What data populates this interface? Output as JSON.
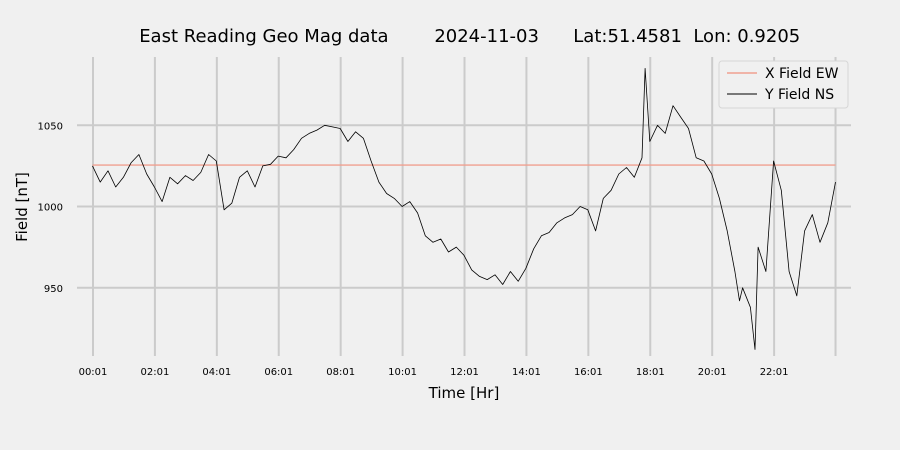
{
  "chart_data": {
    "type": "line",
    "title": {
      "label": "East Reading Geo Mag data",
      "date": "2024-11-03",
      "location": "Lat:51.4581  Lon: 0.9205"
    },
    "xlabel": "Time  [Hr]",
    "ylabel": "Field  [nT]",
    "x_unit": "hours",
    "xlim": [
      -0.5,
      24.5
    ],
    "ylim": [
      908,
      1092
    ],
    "x_ticks": [
      {
        "x": 0.0167,
        "label": "00:01"
      },
      {
        "x": 2.0167,
        "label": "02:01"
      },
      {
        "x": 4.0167,
        "label": "04:01"
      },
      {
        "x": 6.0167,
        "label": "06:01"
      },
      {
        "x": 8.0167,
        "label": "08:01"
      },
      {
        "x": 10.0167,
        "label": "10:01"
      },
      {
        "x": 12.0167,
        "label": "12:01"
      },
      {
        "x": 14.0167,
        "label": "14:01"
      },
      {
        "x": 16.0167,
        "label": "16:01"
      },
      {
        "x": 18.0167,
        "label": "18:01"
      },
      {
        "x": 20.0167,
        "label": "20:01"
      },
      {
        "x": 22.0167,
        "label": "22:01"
      },
      {
        "x": 24.0,
        "label": ""
      }
    ],
    "y_ticks": [
      950,
      1000,
      1050
    ],
    "grid": true,
    "legend_position": "top-right",
    "series": [
      {
        "name": "X Field EW",
        "color": "#f0a090",
        "x": [
          0.0,
          24.0
        ],
        "y": [
          1025.5,
          1025.5
        ]
      },
      {
        "name": "Y Field NS",
        "color": "#000000",
        "x": [
          0.0,
          0.25,
          0.5,
          0.75,
          1.0,
          1.25,
          1.5,
          1.75,
          2.0,
          2.25,
          2.5,
          2.75,
          3.0,
          3.25,
          3.5,
          3.75,
          4.0,
          4.25,
          4.5,
          4.75,
          5.0,
          5.25,
          5.5,
          5.75,
          6.0,
          6.25,
          6.5,
          6.75,
          7.0,
          7.25,
          7.5,
          7.75,
          8.0,
          8.25,
          8.5,
          8.75,
          9.0,
          9.25,
          9.5,
          9.75,
          10.0,
          10.25,
          10.5,
          10.75,
          11.0,
          11.25,
          11.5,
          11.75,
          12.0,
          12.25,
          12.5,
          12.75,
          13.0,
          13.25,
          13.5,
          13.75,
          14.0,
          14.25,
          14.5,
          14.75,
          15.0,
          15.25,
          15.5,
          15.75,
          16.0,
          16.25,
          16.5,
          16.75,
          17.0,
          17.25,
          17.5,
          17.75,
          17.85,
          18.0,
          18.25,
          18.5,
          18.75,
          19.0,
          19.25,
          19.5,
          19.75,
          20.0,
          20.25,
          20.5,
          20.75,
          20.9,
          21.0,
          21.25,
          21.4,
          21.5,
          21.75,
          22.0,
          22.25,
          22.5,
          22.75,
          23.0,
          23.25,
          23.5,
          23.75,
          24.0
        ],
        "y": [
          1025,
          1015,
          1022,
          1012,
          1018,
          1027,
          1032,
          1020,
          1012,
          1003,
          1018,
          1014,
          1019,
          1016,
          1021,
          1032,
          1028,
          998,
          1002,
          1018,
          1022,
          1012,
          1025,
          1026,
          1031,
          1030,
          1035,
          1042,
          1045,
          1047,
          1050,
          1049,
          1048,
          1040,
          1046,
          1042,
          1028,
          1015,
          1008,
          1005,
          1000,
          1003,
          996,
          982,
          978,
          980,
          972,
          975,
          970,
          961,
          957,
          955,
          958,
          952,
          960,
          954,
          962,
          974,
          982,
          984,
          990,
          993,
          995,
          1000,
          998,
          985,
          1005,
          1010,
          1020,
          1024,
          1018,
          1030,
          1085,
          1040,
          1050,
          1045,
          1062,
          1055,
          1048,
          1030,
          1028,
          1020,
          1005,
          985,
          960,
          942,
          950,
          938,
          912,
          975,
          960,
          1028,
          1010,
          960,
          945,
          985,
          995,
          978,
          990,
          1015
        ]
      }
    ]
  }
}
